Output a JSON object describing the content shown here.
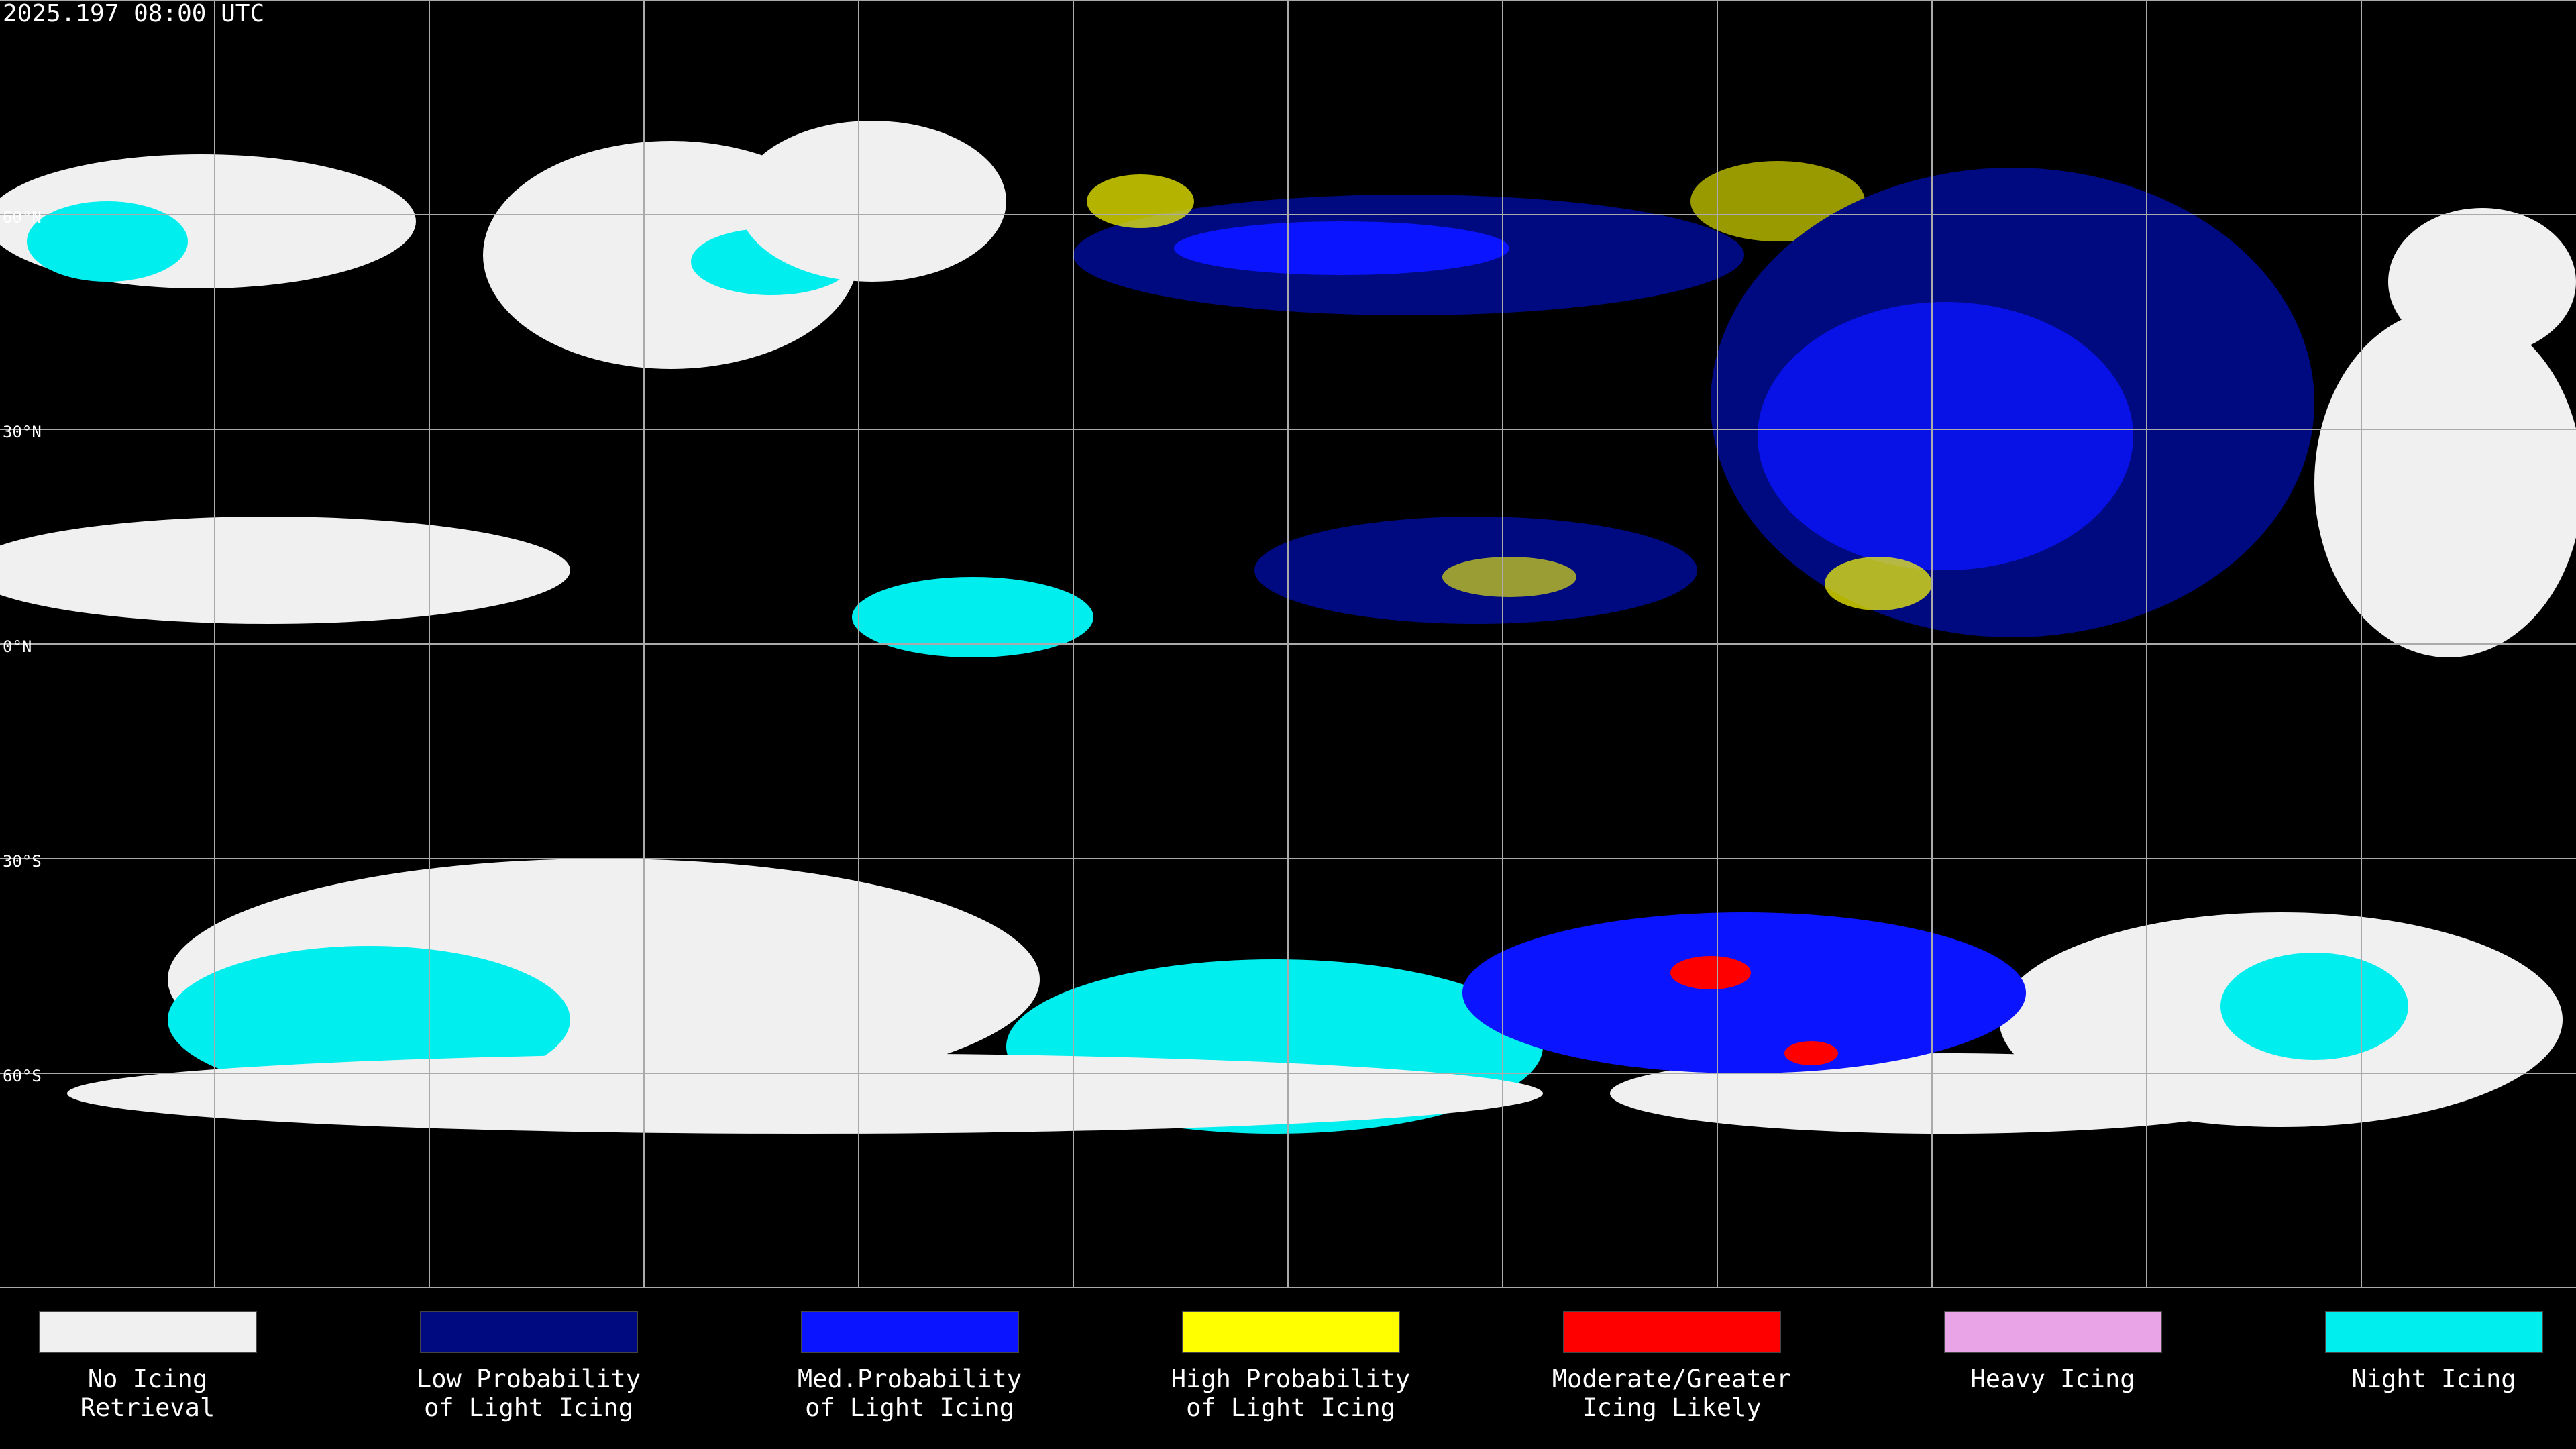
{
  "header": {
    "timestamp": "2025.197 08:00 UTC"
  },
  "map": {
    "lat_labels": [
      "60°N",
      "30°N",
      "0°N",
      "30°S",
      "60°S"
    ]
  },
  "legend": {
    "items": [
      {
        "lines": [
          "No Icing",
          "Retrieval"
        ],
        "color": "#f0f0f0"
      },
      {
        "lines": [
          "Low Probability",
          "of Light Icing"
        ],
        "color": "#000a80"
      },
      {
        "lines": [
          "Med.Probability",
          "of Light Icing"
        ],
        "color": "#0a14ff"
      },
      {
        "lines": [
          "High Probability",
          "of Light Icing"
        ],
        "color": "#ffff00"
      },
      {
        "lines": [
          "Moderate/Greater",
          "Icing Likely"
        ],
        "color": "#ff0000"
      },
      {
        "lines": [
          "Heavy Icing"
        ],
        "color": "#e8a4e6"
      },
      {
        "lines": [
          "Night Icing"
        ],
        "color": "#00eeee"
      }
    ]
  }
}
